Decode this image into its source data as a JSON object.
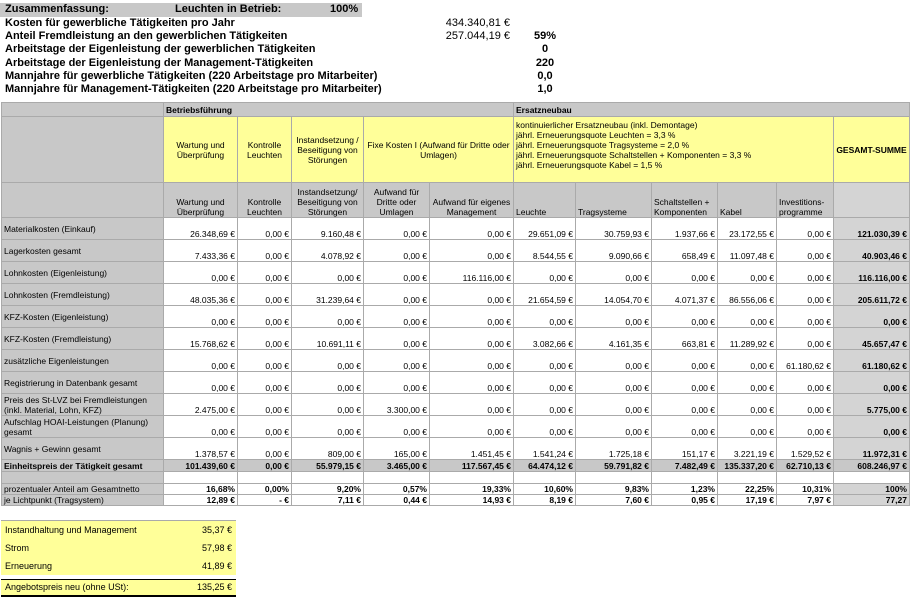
{
  "summary": {
    "title": "Zusammenfassung:",
    "label": "Leuchten in Betrieb:",
    "percent": "100%",
    "rows": [
      {
        "label": "Kosten für gewerbliche Tätigkeiten pro Jahr",
        "value": "434.340,81 €"
      },
      {
        "label": "Anteil Fremdleistung an den gewerblichen Tätigkeiten",
        "value": "257.044,19 €",
        "percent": "59%"
      },
      {
        "label": "Arbeitstage der Eigenleistung der gewerblichen Tätigkeiten",
        "percent": "0"
      },
      {
        "label": "Arbeitstage der Eigenleistung der Management-Tätigkeiten",
        "percent": "220"
      },
      {
        "label": "Mannjahre für gewerbliche Tätigkeiten (220 Arbeitstage pro Mitarbeiter)",
        "percent": "0,0"
      },
      {
        "label": "Mannjahre für Management-Tätigkeiten (220 Arbeitstage pro Mitarbeiter)",
        "percent": "1,0"
      }
    ]
  },
  "table": {
    "groups": [
      "Betriebsführung",
      "Ersatzneubau"
    ],
    "header_top": [
      "Wartung und Überprüfung",
      "Kontrolle Leuchten",
      "Instandsetzung / Beseitigung von Störungen",
      "Fixe Kosten I (Aufwand für Dritte oder Umlagen)"
    ],
    "notes": [
      "kontinuierlicher Ersatzneubau (inkl. Demontage)",
      "jährl. Erneuerungsquote Leuchten = 3,3 %",
      "jährl. Erneuerungsquote Tragsysteme = 2,0 %",
      "jährl. Erneuerungsquote Schaltstellen + Komponenten = 3,3 %",
      "jährl. Erneuerungsquote Kabel = 1,5 %"
    ],
    "total_header": "GESAMT-SUMME",
    "header_bottom": [
      "Wartung und Überprüfung",
      "Kontrolle Leuchten",
      "Instandsetzung/ Beseitigung von Störungen",
      "Aufwand für Dritte oder Umlagen",
      "Aufwand für eigenes Management",
      "Leuchte",
      "Tragsysteme",
      "Schaltstellen + Komponenten",
      "Kabel",
      "Investitions-programme"
    ],
    "rows": [
      {
        "label": "Materialkosten (Einkauf)",
        "values": [
          "26.348,69 €",
          "0,00 €",
          "9.160,48 €",
          "0,00 €",
          "0,00 €",
          "29.651,09 €",
          "30.759,93 €",
          "1.937,66 €",
          "23.172,55 €",
          "0,00 €",
          "121.030,39 €"
        ]
      },
      {
        "label": "Lagerkosten gesamt",
        "values": [
          "7.433,36 €",
          "0,00 €",
          "4.078,92 €",
          "0,00 €",
          "0,00 €",
          "8.544,55 €",
          "9.090,66 €",
          "658,49 €",
          "11.097,48 €",
          "0,00 €",
          "40.903,46 €"
        ]
      },
      {
        "label": "Lohnkosten (Eigenleistung)",
        "values": [
          "0,00 €",
          "0,00 €",
          "0,00 €",
          "0,00 €",
          "116.116,00 €",
          "0,00 €",
          "0,00 €",
          "0,00 €",
          "0,00 €",
          "0,00 €",
          "116.116,00 €"
        ]
      },
      {
        "label": "Lohnkosten (Fremdleistung)",
        "values": [
          "48.035,36 €",
          "0,00 €",
          "31.239,64 €",
          "0,00 €",
          "0,00 €",
          "21.654,59 €",
          "14.054,70 €",
          "4.071,37 €",
          "86.556,06 €",
          "0,00 €",
          "205.611,72 €"
        ]
      },
      {
        "label": "KFZ-Kosten (Eigenleistung)",
        "values": [
          "0,00 €",
          "0,00 €",
          "0,00 €",
          "0,00 €",
          "0,00 €",
          "0,00 €",
          "0,00 €",
          "0,00 €",
          "0,00 €",
          "0,00 €",
          "0,00 €"
        ]
      },
      {
        "label": "KFZ-Kosten (Fremdleistung)",
        "values": [
          "15.768,62 €",
          "0,00 €",
          "10.691,11 €",
          "0,00 €",
          "0,00 €",
          "3.082,66 €",
          "4.161,35 €",
          "663,81 €",
          "11.289,92 €",
          "0,00 €",
          "45.657,47 €"
        ]
      },
      {
        "label": "zusätzliche Eigenleistungen",
        "values": [
          "0,00 €",
          "0,00 €",
          "0,00 €",
          "0,00 €",
          "0,00 €",
          "0,00 €",
          "0,00 €",
          "0,00 €",
          "0,00 €",
          "61.180,62 €",
          "61.180,62 €"
        ]
      },
      {
        "label": "Registrierung in Datenbank gesamt",
        "values": [
          "0,00 €",
          "0,00 €",
          "0,00 €",
          "0,00 €",
          "0,00 €",
          "0,00 €",
          "0,00 €",
          "0,00 €",
          "0,00 €",
          "0,00 €",
          "0,00 €"
        ]
      },
      {
        "label": "Preis des St-LVZ bei Fremdleistungen (inkl. Material, Lohn, KFZ)",
        "values": [
          "2.475,00 €",
          "0,00 €",
          "0,00 €",
          "3.300,00 €",
          "0,00 €",
          "0,00 €",
          "0,00 €",
          "0,00 €",
          "0,00 €",
          "0,00 €",
          "5.775,00 €"
        ]
      },
      {
        "label": "Aufschlag HOAI-Leistungen (Planung) gesamt",
        "values": [
          "0,00 €",
          "0,00 €",
          "0,00 €",
          "0,00 €",
          "0,00 €",
          "0,00 €",
          "0,00 €",
          "0,00 €",
          "0,00 €",
          "0,00 €",
          "0,00 €"
        ]
      },
      {
        "label": "Wagnis + Gewinn gesamt",
        "values": [
          "1.378,57 €",
          "0,00 €",
          "809,00 €",
          "165,00 €",
          "1.451,45 €",
          "1.541,24 €",
          "1.725,18 €",
          "151,17 €",
          "3.221,19 €",
          "1.529,52 €",
          "11.972,31 €"
        ]
      }
    ],
    "total_row": {
      "label": "Einheitspreis der Tätigkeit gesamt",
      "values": [
        "101.439,60 €",
        "0,00 €",
        "55.979,15 €",
        "3.465,00 €",
        "117.567,45 €",
        "64.474,12 €",
        "59.791,82 €",
        "7.482,49 €",
        "135.337,20 €",
        "62.710,13 €",
        "608.246,97 €"
      ]
    },
    "footer_rows": [
      {
        "label": "prozentualer Anteil am Gesamtnetto",
        "values": [
          "16,68%",
          "0,00%",
          "9,20%",
          "0,57%",
          "19,33%",
          "10,60%",
          "9,83%",
          "1,23%",
          "22,25%",
          "10,31%",
          "100%"
        ]
      },
      {
        "label": "je Lichtpunkt (Tragsystem)",
        "values": [
          "12,89 €",
          "-   €",
          "7,11 €",
          "0,44 €",
          "14,93 €",
          "8,19 €",
          "7,60 €",
          "0,95 €",
          "17,19 €",
          "7,97 €",
          "77,27"
        ]
      }
    ]
  },
  "price": {
    "rows": [
      {
        "label": "Instandhaltung und Management",
        "value": "35,37 €"
      },
      {
        "label": "Strom",
        "value": "57,98 €"
      },
      {
        "label": "Erneuerung",
        "value": "41,89 €"
      }
    ],
    "total": {
      "label": "Angebotspreis neu (ohne USt):",
      "value": "135,25 €"
    }
  }
}
